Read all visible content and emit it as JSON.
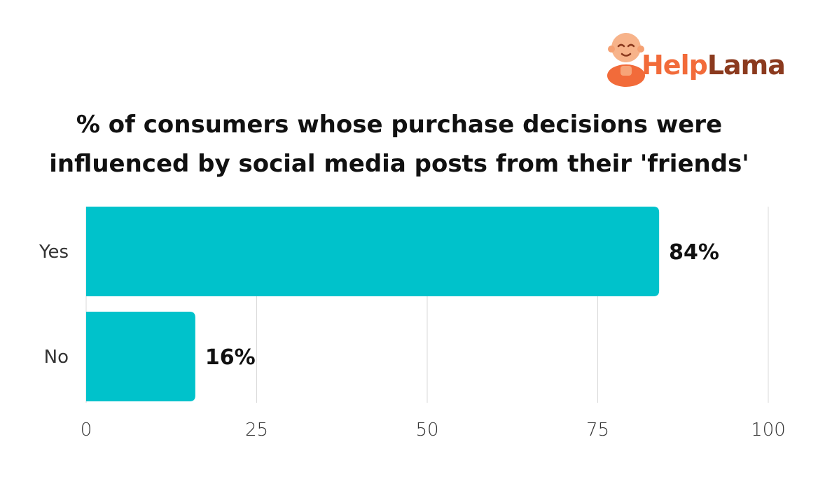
{
  "logo": {
    "help": "Help",
    "lama": "Lama",
    "icon": "monk-mascot-icon"
  },
  "colors": {
    "bar": "#00c2cb",
    "grid": "#d9d9d9",
    "logo_orange": "#f26b3a",
    "logo_brown": "#8b3a1e"
  },
  "chart_data": {
    "type": "bar",
    "orientation": "horizontal",
    "title": "% of consumers whose purchase decisions were influenced by social media posts from their 'friends'",
    "title_lines": [
      "% of consumers whose purchase decisions were",
      "influenced by social media posts from their 'friends'"
    ],
    "categories": [
      "Yes",
      "No"
    ],
    "values": [
      84,
      16
    ],
    "data_labels": [
      "84%",
      "16%"
    ],
    "xlim": [
      0,
      100
    ],
    "x_ticks": [
      "0",
      "25",
      "50",
      "75",
      "100"
    ],
    "xlabel": "",
    "ylabel": "",
    "grid": true,
    "legend": "none"
  }
}
